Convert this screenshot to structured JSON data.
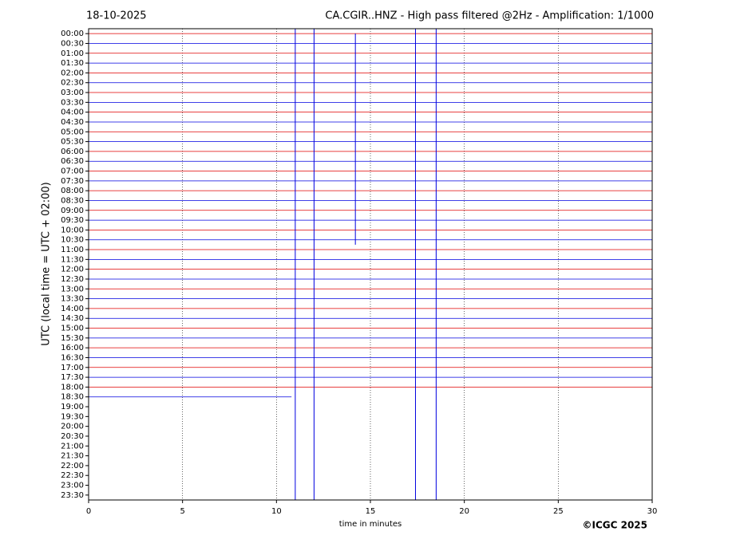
{
  "chart_data": {
    "type": "helicorder",
    "date": "18-10-2025",
    "title": "CA.CGIR..HNZ - High pass filtered @2Hz - Amplification: 1/1000",
    "x_label": "time in minutes",
    "y_label": "UTC (local time = UTC + 02:00)",
    "copyright": "©ICGC 2025",
    "categories": [
      "00:00",
      "00:30",
      "01:00",
      "01:30",
      "02:00",
      "02:30",
      "03:00",
      "03:30",
      "04:00",
      "04:30",
      "05:00",
      "05:30",
      "06:00",
      "06:30",
      "07:00",
      "07:30",
      "08:00",
      "08:30",
      "09:00",
      "09:30",
      "10:00",
      "10:30",
      "11:00",
      "11:30",
      "12:00",
      "12:30",
      "13:00",
      "13:30",
      "14:00",
      "14:30",
      "15:00",
      "15:30",
      "16:00",
      "16:30",
      "17:00",
      "17:30",
      "18:00",
      "18:30",
      "19:00",
      "19:30",
      "20:00",
      "20:30",
      "21:00",
      "21:30",
      "22:00",
      "22:30",
      "23:00",
      "23:30"
    ],
    "trace_end": [
      30,
      30,
      30,
      30,
      30,
      30,
      30,
      30,
      30,
      30,
      30,
      30,
      30,
      30,
      30,
      30,
      30,
      30,
      30,
      30,
      30,
      30,
      30,
      30,
      30,
      30,
      30,
      30,
      30,
      30,
      30,
      30,
      30,
      30,
      30,
      30,
      30,
      10.8,
      null,
      null,
      null,
      null,
      null,
      null,
      null,
      null,
      null,
      null
    ],
    "colors": [
      "#e00000",
      "#0000e0"
    ],
    "events": [
      {
        "x": 11.0,
        "from": "00:00",
        "to": "23:30"
      },
      {
        "x": 12.0,
        "from": "00:00",
        "to": "23:30"
      },
      {
        "x": 14.2,
        "from": "00:30",
        "to": "10:30"
      },
      {
        "x": 17.4,
        "from": "00:00",
        "to": "23:30"
      },
      {
        "x": 18.5,
        "from": "00:00",
        "to": "23:30"
      }
    ],
    "xlim": [
      0,
      30
    ],
    "xticks": [
      0,
      5,
      10,
      15,
      20,
      25,
      30
    ],
    "grid": true
  }
}
